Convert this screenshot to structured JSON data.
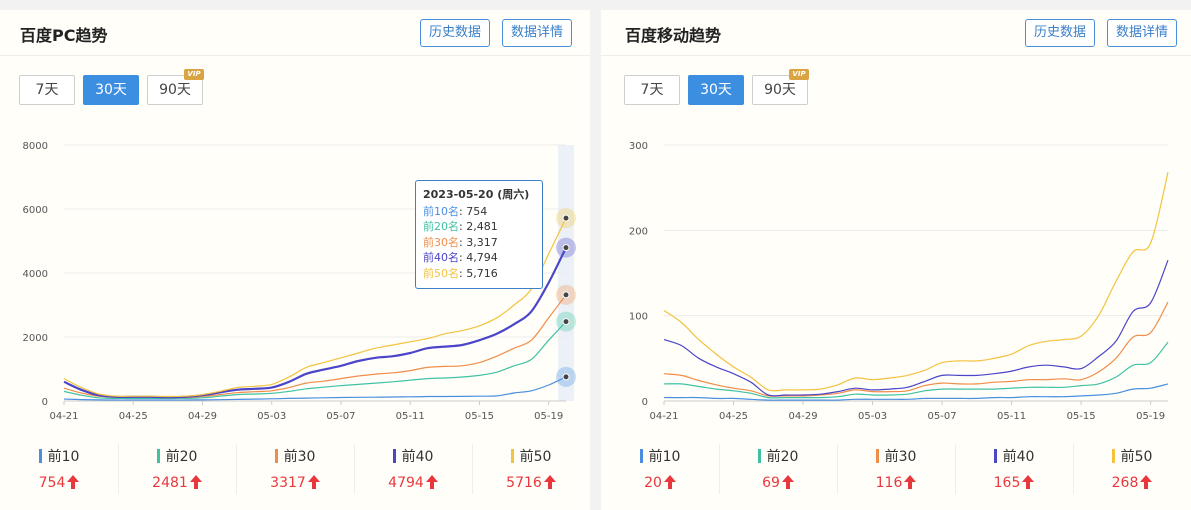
{
  "panels": [
    {
      "title": "百度PC趋势",
      "history_btn": "历史数据",
      "detail_btn": "数据详情",
      "ranges": [
        "7天",
        "30天",
        "90天"
      ],
      "active_range": 1,
      "vip_badge": "VIP",
      "tooltip": {
        "date": "2023-05-20 (周六)",
        "rows": [
          {
            "label": "前10名",
            "value": "754"
          },
          {
            "label": "前20名",
            "value": "2,481"
          },
          {
            "label": "前30名",
            "value": "3,317"
          },
          {
            "label": "前40名",
            "value": "4,794"
          },
          {
            "label": "前50名",
            "value": "5,716"
          }
        ]
      },
      "legend": [
        {
          "label": "前10",
          "value": "754"
        },
        {
          "label": "前20",
          "value": "2481"
        },
        {
          "label": "前30",
          "value": "3317"
        },
        {
          "label": "前40",
          "value": "4794"
        },
        {
          "label": "前50",
          "value": "5716"
        }
      ]
    },
    {
      "title": "百度移动趋势",
      "history_btn": "历史数据",
      "detail_btn": "数据详情",
      "ranges": [
        "7天",
        "30天",
        "90天"
      ],
      "active_range": 1,
      "vip_badge": "VIP",
      "legend": [
        {
          "label": "前10",
          "value": "20"
        },
        {
          "label": "前20",
          "value": "69"
        },
        {
          "label": "前30",
          "value": "116"
        },
        {
          "label": "前40",
          "value": "165"
        },
        {
          "label": "前50",
          "value": "268"
        }
      ]
    }
  ],
  "colors": {
    "top10": "#4a8fe0",
    "top20": "#3fc2a3",
    "top30": "#f08d4a",
    "top40": "#4b45c9",
    "top50": "#f3c23e",
    "accent": "#3c8ee0",
    "up_arrow": "#e8383d"
  },
  "chart_data": [
    {
      "type": "line",
      "title": "百度PC趋势",
      "x": [
        "04-21",
        "04-22",
        "04-23",
        "04-24",
        "04-25",
        "04-26",
        "04-27",
        "04-28",
        "04-29",
        "04-30",
        "05-01",
        "05-02",
        "05-03",
        "05-04",
        "05-05",
        "05-06",
        "05-07",
        "05-08",
        "05-09",
        "05-10",
        "05-11",
        "05-12",
        "05-13",
        "05-14",
        "05-15",
        "05-16",
        "05-17",
        "05-18",
        "05-19",
        "05-20"
      ],
      "x_ticks": [
        "04-21",
        "04-25",
        "04-29",
        "05-03",
        "05-07",
        "05-11",
        "05-15",
        "05-19"
      ],
      "ylim": [
        0,
        8000
      ],
      "y_ticks": [
        0,
        2000,
        4000,
        6000,
        8000
      ],
      "grid": true,
      "highlight_index": 29,
      "series": [
        {
          "name": "前10",
          "values": [
            60,
            45,
            35,
            30,
            30,
            30,
            30,
            30,
            35,
            40,
            50,
            60,
            70,
            80,
            90,
            100,
            110,
            115,
            120,
            125,
            130,
            140,
            140,
            145,
            150,
            160,
            250,
            320,
            500,
            754
          ]
        },
        {
          "name": "前20",
          "values": [
            300,
            180,
            100,
            80,
            80,
            80,
            80,
            80,
            100,
            150,
            200,
            220,
            240,
            300,
            380,
            430,
            480,
            520,
            560,
            600,
            650,
            700,
            720,
            750,
            800,
            900,
            1100,
            1300,
            1900,
            2481
          ]
        },
        {
          "name": "前30",
          "values": [
            400,
            250,
            150,
            120,
            120,
            120,
            110,
            110,
            140,
            200,
            260,
            290,
            320,
            420,
            560,
            620,
            700,
            780,
            840,
            880,
            950,
            1050,
            1080,
            1100,
            1200,
            1400,
            1650,
            1900,
            2600,
            3317
          ]
        },
        {
          "name": "前40",
          "values": [
            600,
            350,
            180,
            130,
            130,
            130,
            120,
            130,
            180,
            270,
            350,
            380,
            420,
            600,
            850,
            980,
            1100,
            1250,
            1350,
            1400,
            1500,
            1650,
            1700,
            1750,
            1900,
            2100,
            2400,
            2800,
            3700,
            4794
          ]
        },
        {
          "name": "前50",
          "values": [
            700,
            420,
            220,
            150,
            150,
            150,
            140,
            150,
            200,
            300,
            420,
            460,
            520,
            750,
            1050,
            1200,
            1350,
            1500,
            1650,
            1750,
            1850,
            1950,
            2100,
            2200,
            2350,
            2600,
            3000,
            3500,
            4600,
            5716
          ]
        }
      ]
    },
    {
      "type": "line",
      "title": "百度移动趋势",
      "x": [
        "04-21",
        "04-22",
        "04-23",
        "04-24",
        "04-25",
        "04-26",
        "04-27",
        "04-28",
        "04-29",
        "04-30",
        "05-01",
        "05-02",
        "05-03",
        "05-04",
        "05-05",
        "05-06",
        "05-07",
        "05-08",
        "05-09",
        "05-10",
        "05-11",
        "05-12",
        "05-13",
        "05-14",
        "05-15",
        "05-16",
        "05-17",
        "05-18",
        "05-19",
        "05-20"
      ],
      "x_ticks": [
        "04-21",
        "04-25",
        "04-29",
        "05-03",
        "05-07",
        "05-11",
        "05-15",
        "05-19"
      ],
      "ylim": [
        0,
        300
      ],
      "y_ticks": [
        0,
        100,
        200,
        300
      ],
      "grid": true,
      "series": [
        {
          "name": "前10",
          "values": [
            4,
            4,
            4,
            3,
            3,
            2,
            1,
            1,
            1,
            1,
            1,
            2,
            2,
            2,
            2,
            3,
            3,
            3,
            3,
            4,
            4,
            5,
            5,
            5,
            6,
            7,
            9,
            14,
            15,
            20
          ]
        },
        {
          "name": "前20",
          "values": [
            20,
            20,
            17,
            14,
            12,
            9,
            4,
            4,
            4,
            4,
            5,
            8,
            7,
            7,
            8,
            12,
            14,
            14,
            14,
            14,
            15,
            16,
            16,
            16,
            18,
            20,
            28,
            42,
            45,
            69
          ]
        },
        {
          "name": "前30",
          "values": [
            32,
            30,
            24,
            19,
            15,
            12,
            6,
            6,
            6,
            7,
            9,
            13,
            11,
            11,
            12,
            18,
            21,
            20,
            20,
            22,
            23,
            25,
            25,
            26,
            25,
            34,
            50,
            75,
            80,
            116
          ]
        },
        {
          "name": "前40",
          "values": [
            72,
            65,
            50,
            40,
            32,
            22,
            7,
            7,
            7,
            8,
            11,
            15,
            13,
            14,
            16,
            23,
            30,
            30,
            30,
            32,
            35,
            40,
            42,
            40,
            38,
            52,
            70,
            105,
            115,
            165
          ]
        },
        {
          "name": "前50",
          "values": [
            106,
            92,
            72,
            55,
            40,
            28,
            13,
            13,
            13,
            14,
            19,
            27,
            25,
            27,
            30,
            36,
            45,
            47,
            47,
            50,
            55,
            65,
            70,
            72,
            76,
            100,
            140,
            175,
            185,
            268
          ]
        }
      ]
    }
  ]
}
